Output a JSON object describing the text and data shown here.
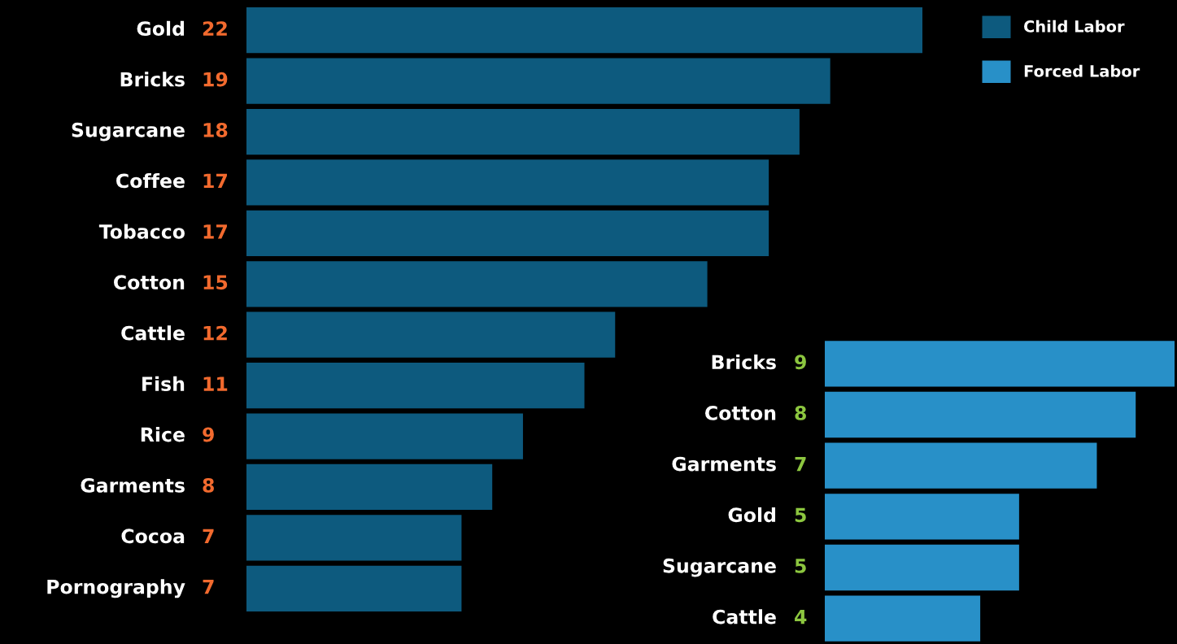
{
  "chart_data": [
    {
      "type": "bar",
      "orientation": "horizontal",
      "categories": [
        "Gold",
        "Bricks",
        "Sugarcane",
        "Coffee",
        "Tobacco",
        "Cotton",
        "Cattle",
        "Fish",
        "Rice",
        "Garments",
        "Cocoa",
        "Pornography"
      ],
      "series": [
        {
          "name": "Child Labor",
          "color": "#0d5a7e",
          "values": [
            22,
            19,
            18,
            17,
            17,
            15,
            12,
            11,
            9,
            8,
            7,
            7
          ]
        }
      ],
      "data_labels": true,
      "legend": "top right"
    },
    {
      "type": "bar",
      "orientation": "horizontal",
      "categories": [
        "Bricks",
        "Cotton",
        "Garments",
        "Gold",
        "Sugarcane",
        "Cattle"
      ],
      "series": [
        {
          "name": "Forced Labor",
          "color": "#2890c8",
          "values": [
            9,
            8,
            7,
            5,
            5,
            4
          ]
        }
      ],
      "data_labels": true,
      "legend": "top right"
    }
  ]
}
